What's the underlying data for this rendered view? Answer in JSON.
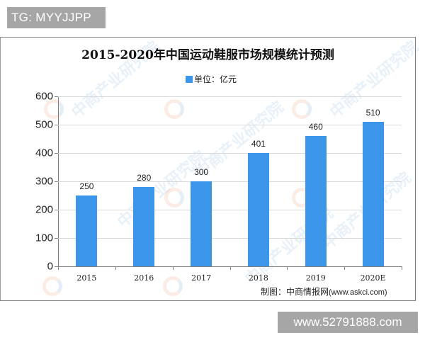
{
  "badges": {
    "top_left": "TG: MYYJJPP",
    "bottom_right": "www.52791888.com"
  },
  "chart": {
    "title": "2015-2020年中国运动鞋服市场规模统计预测",
    "legend_label": "单位：亿元",
    "source_prefix": "制图：中商情报网",
    "source_url": "(www.askci.com)",
    "watermark": "中商产业研究院",
    "bar_color": "#3b96ea"
  },
  "chart_data": {
    "type": "bar",
    "title": "2015-2020年中国运动鞋服市场规模统计预测",
    "categories": [
      "2015",
      "2016",
      "2017",
      "2018",
      "2019",
      "2020E"
    ],
    "series": [
      {
        "name": "单位：亿元",
        "values": [
          250,
          280,
          300,
          401,
          460,
          510
        ]
      }
    ],
    "value_labels": [
      "250",
      "280",
      "300",
      "401",
      "460",
      "510"
    ],
    "xlabel": "",
    "ylabel": "",
    "ylim": [
      0,
      600
    ],
    "yticks": [
      "0",
      "100",
      "200",
      "300",
      "400",
      "500",
      "600"
    ],
    "grid": true,
    "legend_position": "top"
  }
}
